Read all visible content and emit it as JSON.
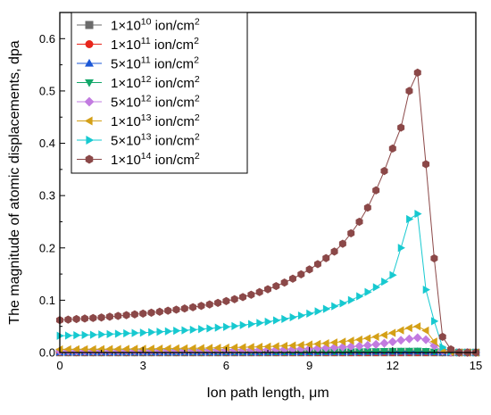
{
  "chart_data": {
    "type": "line",
    "xlabel": "Ion path length, μm",
    "ylabel": "The magnitude of atomic displacements, dpa",
    "xlim": [
      0,
      15
    ],
    "ylim": [
      0,
      0.65
    ],
    "xticks": [
      0,
      3,
      6,
      9,
      12,
      15
    ],
    "xtick_labels": [
      "0",
      "3",
      "6",
      "9",
      "12",
      "15"
    ],
    "yticks": [
      0.0,
      0.1,
      0.2,
      0.3,
      0.4,
      0.5,
      0.6
    ],
    "ytick_labels": [
      "0.0",
      "0.1",
      "0.2",
      "0.3",
      "0.4",
      "0.5",
      "0.6"
    ],
    "grid": false,
    "legend_position": "top-left",
    "x": [
      0.0,
      0.3,
      0.6,
      0.9,
      1.2,
      1.5,
      1.8,
      2.1,
      2.4,
      2.7,
      3.0,
      3.3,
      3.6,
      3.9,
      4.2,
      4.5,
      4.8,
      5.1,
      5.4,
      5.7,
      6.0,
      6.3,
      6.6,
      6.9,
      7.2,
      7.5,
      7.8,
      8.1,
      8.4,
      8.7,
      9.0,
      9.3,
      9.6,
      9.9,
      10.2,
      10.5,
      10.8,
      11.1,
      11.4,
      11.7,
      12.0,
      12.3,
      12.6,
      12.9,
      13.2,
      13.5,
      13.8,
      14.1,
      14.4,
      14.7,
      15.0
    ],
    "series": [
      {
        "name": "1×10",
        "name_sup": "10",
        "name_suffix": " ion/cm",
        "name_suffix_sup": "2",
        "color": "#6b6b6b",
        "marker": "square",
        "values": [
          1e-05,
          1e-05,
          1e-05,
          1e-05,
          1e-05,
          1e-05,
          1e-05,
          1e-05,
          1e-05,
          1e-05,
          1e-05,
          1e-05,
          1e-05,
          1e-05,
          1e-05,
          1e-05,
          1e-05,
          1e-05,
          1e-05,
          1e-05,
          1e-05,
          1e-05,
          1e-05,
          1e-05,
          1e-05,
          1e-05,
          1e-05,
          1e-05,
          1e-05,
          1e-05,
          1e-05,
          1e-05,
          1e-05,
          1e-05,
          1e-05,
          1e-05,
          1e-05,
          1e-05,
          1e-05,
          1e-05,
          1e-05,
          1e-05,
          1e-05,
          1e-05,
          1e-05,
          1e-05,
          0.0,
          0.0,
          0.0,
          0.0,
          0.0
        ]
      },
      {
        "name": "1×10",
        "name_sup": "11",
        "name_suffix": " ion/cm",
        "name_suffix_sup": "2",
        "color": "#e8261c",
        "marker": "circle",
        "values": [
          5e-05,
          5e-05,
          5e-05,
          5e-05,
          5e-05,
          5e-05,
          5e-05,
          5e-05,
          5e-05,
          6e-05,
          6e-05,
          6e-05,
          6e-05,
          6e-05,
          6e-05,
          7e-05,
          7e-05,
          7e-05,
          7e-05,
          8e-05,
          8e-05,
          8e-05,
          9e-05,
          9e-05,
          0.0001,
          0.0001,
          0.00011,
          0.00011,
          0.00012,
          0.00013,
          0.00014,
          0.00015,
          0.00016,
          0.00017,
          0.00019,
          0.0002,
          0.00022,
          0.00024,
          0.00026,
          0.00028,
          0.0003,
          0.00032,
          0.00033,
          0.00034,
          0.00028,
          0.00015,
          3e-05,
          0.0,
          0.0,
          0.0,
          0.0
        ]
      },
      {
        "name": "5×10",
        "name_sup": "11",
        "name_suffix": " ion/cm",
        "name_suffix_sup": "2",
        "color": "#1c58d6",
        "marker": "triangle-up",
        "values": [
          0.0003,
          0.0003,
          0.0003,
          0.0003,
          0.0003,
          0.0003,
          0.0003,
          0.0003,
          0.0003,
          0.0003,
          0.0003,
          0.0003,
          0.0003,
          0.0003,
          0.0003,
          0.0004,
          0.0004,
          0.0004,
          0.0004,
          0.0004,
          0.0004,
          0.0004,
          0.0005,
          0.0005,
          0.0005,
          0.0005,
          0.0006,
          0.0006,
          0.0006,
          0.0007,
          0.0007,
          0.0008,
          0.0008,
          0.0009,
          0.0009,
          0.001,
          0.0011,
          0.0012,
          0.0013,
          0.0014,
          0.0015,
          0.0016,
          0.0017,
          0.0017,
          0.0014,
          0.0008,
          0.0002,
          0.0,
          0.0,
          0.0,
          0.0
        ]
      },
      {
        "name": "1×10",
        "name_sup": "12",
        "name_suffix": " ion/cm",
        "name_suffix_sup": "2",
        "color": "#14a86a",
        "marker": "triangle-down",
        "values": [
          0.0006,
          0.0006,
          0.0006,
          0.0006,
          0.0006,
          0.0006,
          0.0006,
          0.0006,
          0.0006,
          0.0006,
          0.0006,
          0.0007,
          0.0007,
          0.0007,
          0.0007,
          0.0007,
          0.0007,
          0.0008,
          0.0008,
          0.0008,
          0.0008,
          0.0009,
          0.0009,
          0.0009,
          0.001,
          0.001,
          0.0011,
          0.0011,
          0.0012,
          0.0013,
          0.0014,
          0.0015,
          0.0016,
          0.0017,
          0.0019,
          0.002,
          0.0022,
          0.0024,
          0.0026,
          0.0028,
          0.003,
          0.0032,
          0.0033,
          0.0034,
          0.0028,
          0.0015,
          0.0003,
          0.0,
          0.0,
          0.0,
          0.0
        ]
      },
      {
        "name": "5×10",
        "name_sup": "12",
        "name_suffix": " ion/cm",
        "name_suffix_sup": "2",
        "color": "#c27be0",
        "marker": "diamond",
        "values": [
          0.003,
          0.003,
          0.0031,
          0.0031,
          0.0032,
          0.0032,
          0.0033,
          0.0033,
          0.0034,
          0.0035,
          0.0035,
          0.0036,
          0.0037,
          0.0038,
          0.0039,
          0.004,
          0.0041,
          0.0042,
          0.0043,
          0.0045,
          0.0046,
          0.0048,
          0.005,
          0.0052,
          0.0054,
          0.0057,
          0.006,
          0.0063,
          0.0067,
          0.0072,
          0.0077,
          0.0083,
          0.0089,
          0.0096,
          0.0104,
          0.0113,
          0.0123,
          0.0137,
          0.0155,
          0.0178,
          0.0205,
          0.0235,
          0.026,
          0.0282,
          0.0245,
          0.013,
          0.003,
          0.0004,
          0.0,
          0.0,
          0.0
        ]
      },
      {
        "name": "1×10",
        "name_sup": "13",
        "name_suffix": " ion/cm",
        "name_suffix_sup": "2",
        "color": "#d4a017",
        "marker": "triangle-left",
        "values": [
          0.006,
          0.0061,
          0.0062,
          0.0063,
          0.0064,
          0.0065,
          0.0066,
          0.0067,
          0.0069,
          0.007,
          0.0071,
          0.0073,
          0.0074,
          0.0076,
          0.0078,
          0.008,
          0.0082,
          0.0084,
          0.0087,
          0.009,
          0.0093,
          0.0096,
          0.01,
          0.0104,
          0.0108,
          0.0114,
          0.012,
          0.0127,
          0.0134,
          0.0143,
          0.0153,
          0.0165,
          0.0178,
          0.0192,
          0.0208,
          0.0226,
          0.0247,
          0.0272,
          0.03,
          0.0335,
          0.0375,
          0.0425,
          0.047,
          0.05,
          0.042,
          0.021,
          0.005,
          0.0008,
          0.0,
          0.0,
          0.0
        ]
      },
      {
        "name": "5×10",
        "name_sup": "13",
        "name_suffix": " ion/cm",
        "name_suffix_sup": "2",
        "color": "#17c9d0",
        "marker": "triangle-right",
        "values": [
          0.032,
          0.0325,
          0.033,
          0.0335,
          0.034,
          0.0345,
          0.0352,
          0.0359,
          0.0366,
          0.0373,
          0.038,
          0.0388,
          0.0396,
          0.0405,
          0.0415,
          0.0425,
          0.0436,
          0.0448,
          0.0461,
          0.0475,
          0.049,
          0.0506,
          0.0524,
          0.0544,
          0.0565,
          0.0588,
          0.0614,
          0.0642,
          0.0673,
          0.0707,
          0.0745,
          0.0787,
          0.0833,
          0.0884,
          0.094,
          0.1003,
          0.1074,
          0.1155,
          0.1248,
          0.1355,
          0.148,
          0.2,
          0.255,
          0.265,
          0.12,
          0.06,
          0.01,
          0.002,
          0.0,
          0.0,
          0.0
        ]
      },
      {
        "name": "1×10",
        "name_sup": "14",
        "name_suffix": " ion/cm",
        "name_suffix_sup": "2",
        "color": "#8b4848",
        "marker": "hexagon",
        "values": [
          0.062,
          0.063,
          0.064,
          0.065,
          0.066,
          0.067,
          0.0685,
          0.07,
          0.0715,
          0.073,
          0.0745,
          0.0762,
          0.078,
          0.08,
          0.082,
          0.0842,
          0.0866,
          0.0892,
          0.092,
          0.095,
          0.0984,
          0.102,
          0.106,
          0.1105,
          0.1155,
          0.121,
          0.127,
          0.1338,
          0.1412,
          0.1495,
          0.1588,
          0.169,
          0.1805,
          0.193,
          0.208,
          0.228,
          0.25,
          0.277,
          0.31,
          0.347,
          0.39,
          0.43,
          0.5,
          0.535,
          0.36,
          0.18,
          0.03,
          0.006,
          0.0,
          0.0,
          0.0
        ]
      }
    ]
  }
}
